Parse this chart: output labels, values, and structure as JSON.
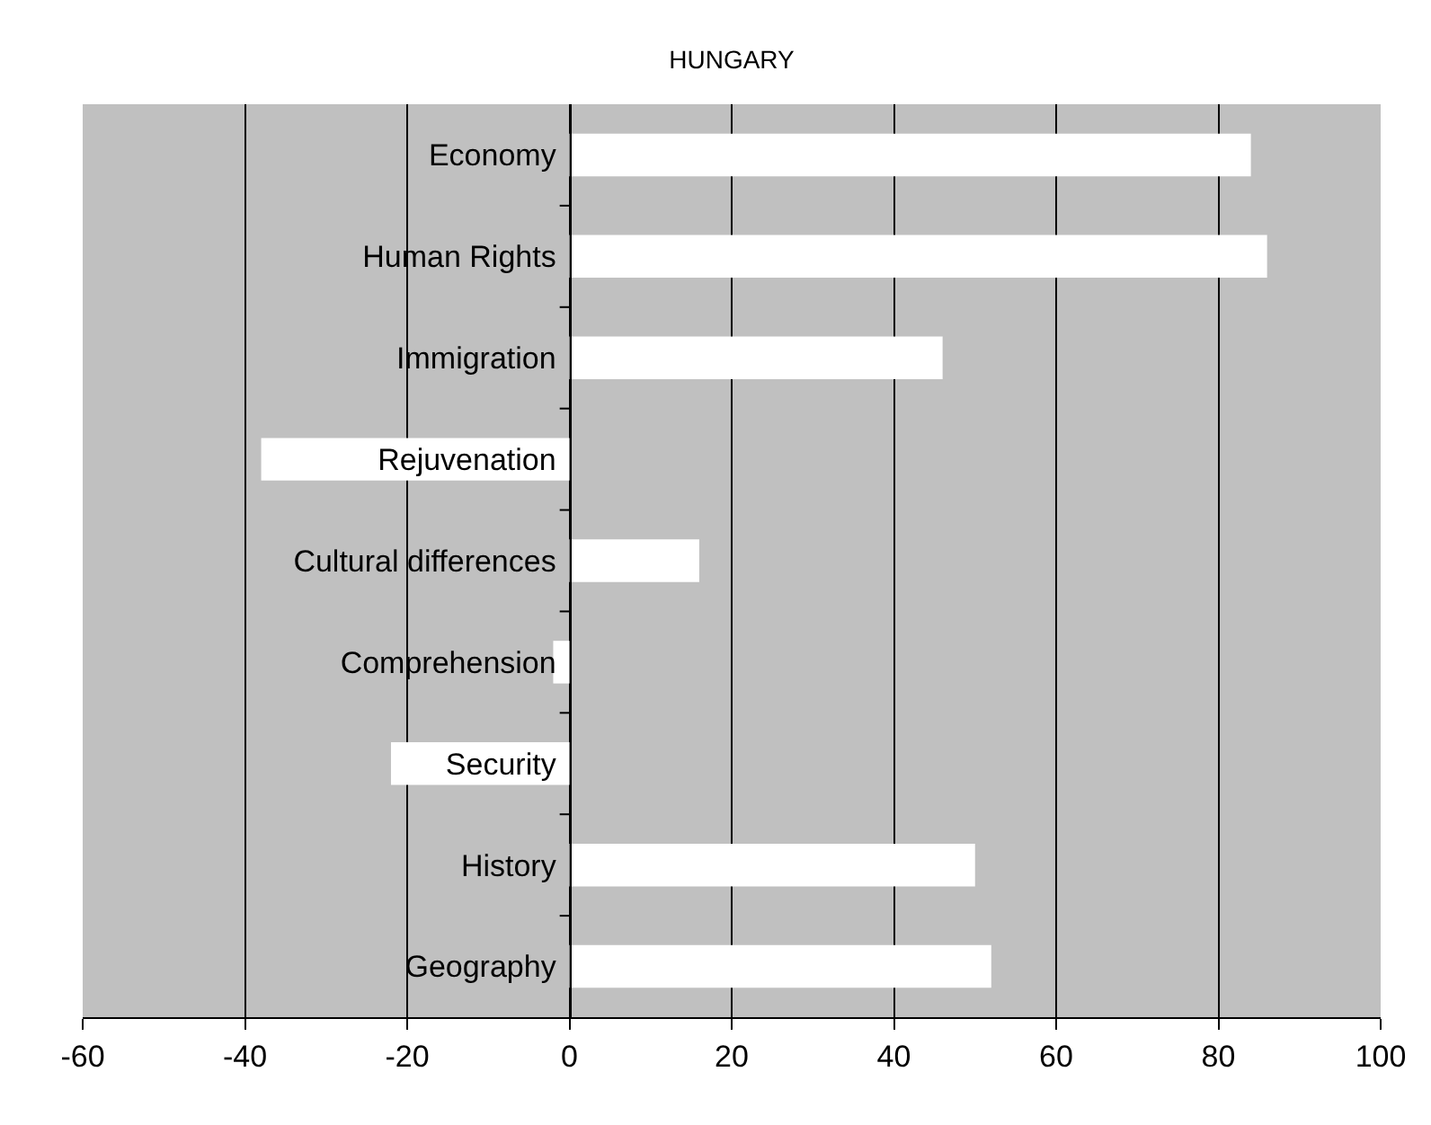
{
  "chart_data": {
    "type": "bar",
    "orientation": "horizontal",
    "title": "HUNGARY",
    "categories": [
      "Economy",
      "Human Rights",
      "Immigration",
      "Rejuvenation",
      "Cultural differences",
      "Comprehension",
      "Security",
      "History",
      "Geography"
    ],
    "values": [
      84,
      86,
      46,
      -38,
      16,
      -2,
      -22,
      50,
      52
    ],
    "color": "#ffffff",
    "xlim": [
      -60,
      100
    ],
    "xticks": [
      -60,
      -40,
      -20,
      0,
      20,
      40,
      60,
      80,
      100
    ],
    "grid": "x"
  }
}
